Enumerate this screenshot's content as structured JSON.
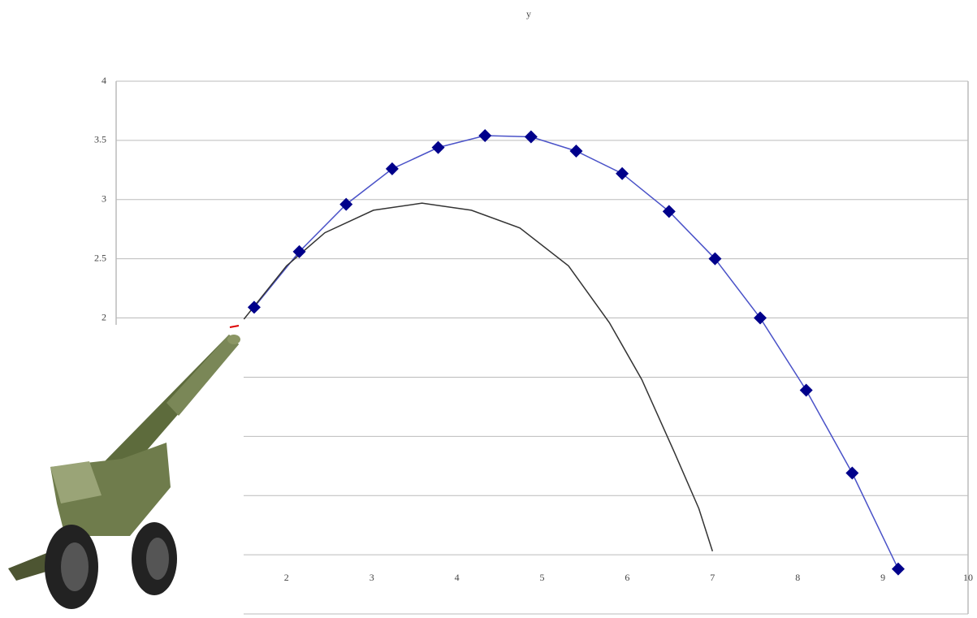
{
  "chart_data": {
    "type": "scatter",
    "title": "y",
    "xlim": [
      0,
      10
    ],
    "xticks": [
      2,
      3,
      4,
      5,
      6,
      7,
      8,
      9,
      10
    ],
    "ylim": [
      -0.5,
      4
    ],
    "yticks": [
      2,
      2.5,
      3,
      3.5,
      4
    ],
    "ygrid": [
      -0.5,
      0,
      0.5,
      1,
      1.5,
      2,
      2.5,
      3,
      3.5,
      4
    ],
    "series": [
      {
        "color": "#00008b",
        "line_color": "#4a52c8",
        "marker": "diamond",
        "x": [
          1.62,
          2.15,
          2.7,
          3.24,
          3.78,
          4.33,
          4.87,
          5.4,
          5.94,
          6.49,
          7.03,
          7.56,
          8.1,
          8.64,
          9.18
        ],
        "values": [
          2.09,
          2.56,
          2.96,
          3.26,
          3.44,
          3.54,
          3.53,
          3.41,
          3.22,
          2.9,
          2.5,
          2.0,
          1.39,
          0.69,
          -0.12
        ]
      },
      {
        "color": "#333333",
        "marker": "none",
        "x": [
          1.5,
          2.0,
          2.45,
          3.02,
          3.59,
          4.17,
          4.74,
          5.31,
          5.79,
          6.17,
          6.55,
          6.84,
          7.0
        ],
        "values": [
          1.99,
          2.44,
          2.72,
          2.91,
          2.97,
          2.91,
          2.76,
          2.44,
          1.96,
          1.48,
          0.87,
          0.39,
          0.03
        ]
      }
    ]
  }
}
